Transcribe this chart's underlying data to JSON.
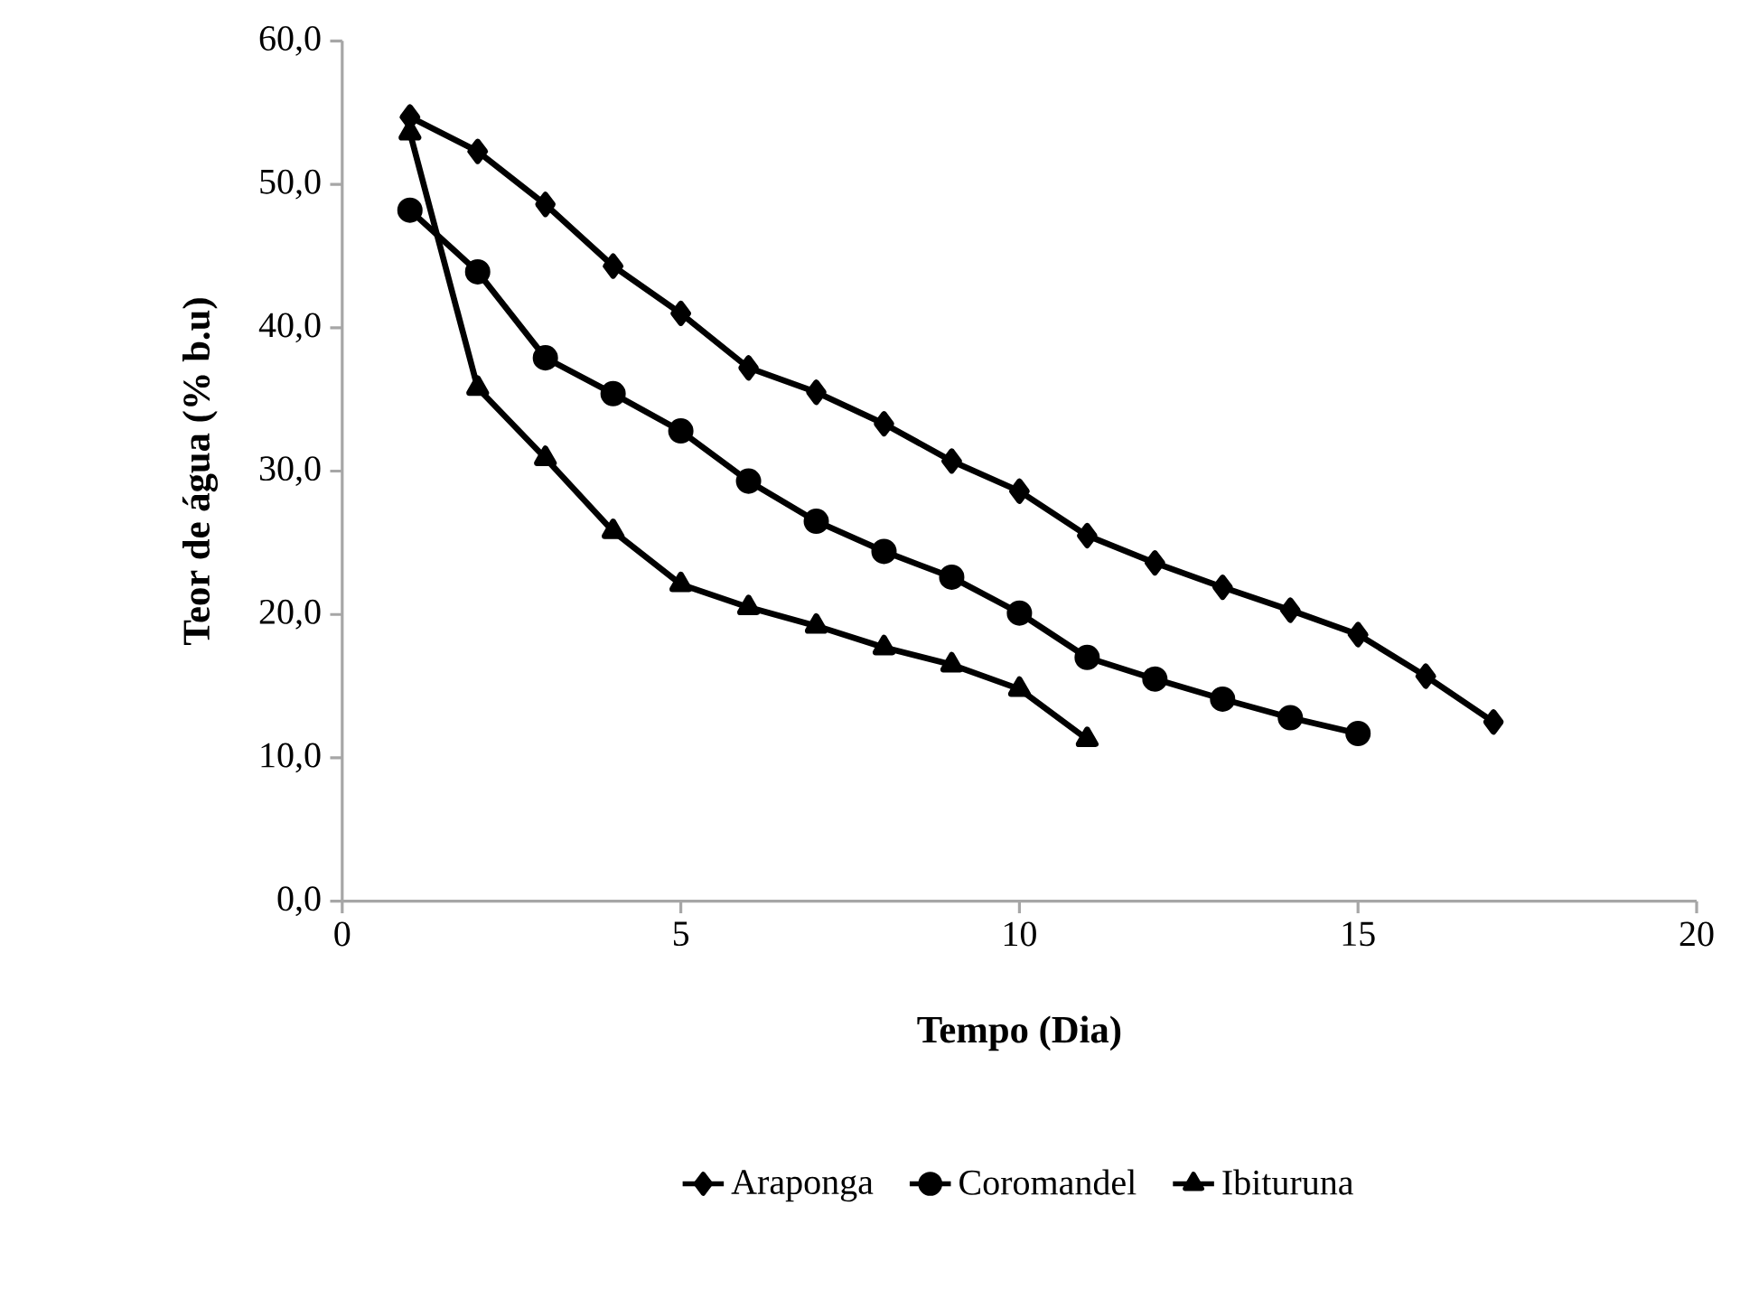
{
  "chart_data": {
    "type": "line",
    "xlabel": "Tempo (Dia)",
    "ylabel": "Teor de água (% b.u)",
    "xlim": [
      0,
      20
    ],
    "xticks": [
      0,
      5,
      10,
      15,
      20
    ],
    "ylim": [
      0,
      60
    ],
    "yticks": [
      {
        "value": 0,
        "label": "0,0"
      },
      {
        "value": 10,
        "label": "10,0"
      },
      {
        "value": 20,
        "label": "20,0"
      },
      {
        "value": 30,
        "label": "30,0"
      },
      {
        "value": 40,
        "label": "40,0"
      },
      {
        "value": 50,
        "label": "50,0"
      },
      {
        "value": 60,
        "label": "60,0"
      }
    ],
    "legend": "bottom",
    "grid": false,
    "line_style": "solid",
    "series": [
      {
        "name": "Araponga",
        "color": "#000000",
        "marker": "diamond",
        "x": [
          1,
          2,
          3,
          4,
          5,
          6,
          7,
          8,
          9,
          10,
          11,
          12,
          13,
          14,
          15,
          16,
          17
        ],
        "values": [
          54.7,
          52.3,
          48.6,
          44.3,
          41.0,
          37.2,
          35.5,
          33.3,
          30.7,
          28.6,
          25.5,
          23.6,
          21.9,
          20.3,
          18.6,
          15.7,
          12.5
        ]
      },
      {
        "name": "Coromandel",
        "color": "#000000",
        "marker": "circle",
        "x": [
          1,
          2,
          3,
          4,
          5,
          6,
          7,
          8,
          9,
          10,
          11,
          12,
          13,
          14,
          15
        ],
        "values": [
          48.2,
          43.9,
          37.9,
          35.4,
          32.8,
          29.3,
          26.5,
          24.4,
          22.6,
          20.1,
          17.0,
          15.5,
          14.1,
          12.8,
          11.7
        ]
      },
      {
        "name": "Ibituruna",
        "color": "#000000",
        "marker": "triangle",
        "x": [
          1,
          2,
          3,
          4,
          5,
          6,
          7,
          8,
          9,
          10,
          11
        ],
        "values": [
          53.6,
          35.8,
          30.9,
          25.8,
          22.1,
          20.5,
          19.2,
          17.7,
          16.5,
          14.8,
          11.3
        ]
      }
    ]
  }
}
